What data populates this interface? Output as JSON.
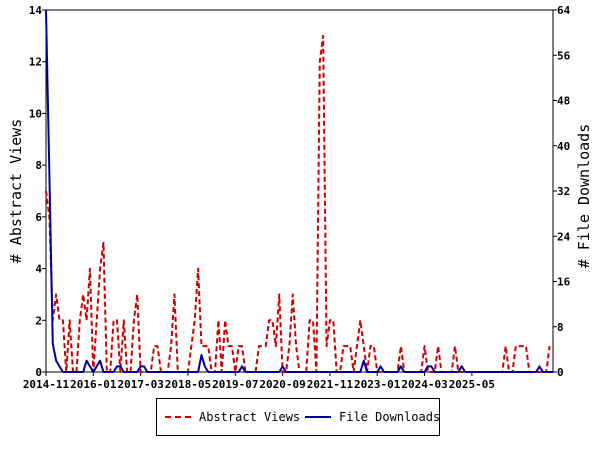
{
  "chart_data": {
    "type": "line",
    "xlabel": "",
    "ylabel": "# Abstract Views",
    "y2label": "# File Downloads",
    "ylim": [
      0,
      14
    ],
    "y2lim": [
      0,
      64
    ],
    "yticks": [
      "0",
      "2",
      "4",
      "6",
      "8",
      "10",
      "12",
      "14"
    ],
    "y2ticks": [
      "0",
      "8",
      "16",
      "24",
      "32",
      "40",
      "48",
      "56",
      "64"
    ],
    "xticks": [
      "2014-11",
      "2016-01",
      "2017-03",
      "2018-05",
      "2019-07",
      "2020-09",
      "2021-11",
      "2023-01",
      "2024-03",
      "2025-05"
    ],
    "start_month": "2014-11",
    "grid": false,
    "legend_position": "bottom",
    "series": [
      {
        "name": "Abstract Views",
        "axis": "left",
        "color": "#cc0000",
        "style": "dashed",
        "values": [
          7,
          6,
          2,
          3,
          2,
          2,
          0,
          2,
          0,
          0,
          2,
          3,
          2,
          4,
          0,
          2,
          4,
          5,
          0,
          0,
          2,
          2,
          0,
          2,
          0,
          0,
          2,
          3,
          0,
          0,
          0,
          0,
          1,
          1,
          0,
          0,
          0,
          1,
          3,
          0,
          0,
          0,
          0,
          1,
          2,
          4,
          1,
          1,
          1,
          0,
          0,
          2,
          0,
          2,
          1,
          1,
          0,
          1,
          1,
          0,
          0,
          0,
          0,
          1,
          1,
          1,
          2,
          2,
          1,
          3,
          0,
          0,
          1,
          3,
          1,
          0,
          0,
          0,
          2,
          2,
          0,
          12,
          13,
          1,
          2,
          2,
          0,
          0,
          1,
          1,
          1,
          0,
          1,
          2,
          1,
          0,
          1,
          1,
          0,
          0,
          0,
          0,
          0,
          0,
          0,
          1,
          0,
          0,
          0,
          0,
          0,
          0,
          1,
          0,
          0,
          0,
          1,
          0,
          0,
          0,
          0,
          1,
          0,
          0,
          0,
          0,
          0,
          0,
          0,
          0,
          0,
          0,
          0,
          0,
          0,
          0,
          1,
          0,
          0,
          1,
          1,
          1,
          1,
          0,
          0,
          0,
          0,
          0,
          0,
          1
        ]
      },
      {
        "name": "File Downloads",
        "axis": "right",
        "color": "#000099",
        "style": "solid",
        "values": [
          64,
          35,
          5,
          2,
          1,
          0,
          0,
          0,
          0,
          0,
          0,
          0,
          2,
          1,
          0,
          1,
          2,
          0,
          0,
          0,
          0,
          1,
          1,
          0,
          0,
          0,
          0,
          0,
          1,
          1,
          0,
          0,
          0,
          0,
          0,
          0,
          0,
          0,
          0,
          0,
          0,
          0,
          0,
          0,
          0,
          0,
          3,
          1,
          0,
          0,
          0,
          0,
          0,
          0,
          0,
          0,
          0,
          0,
          1,
          0,
          0,
          0,
          0,
          0,
          0,
          0,
          0,
          0,
          0,
          0,
          1,
          0,
          0,
          0,
          0,
          0,
          0,
          0,
          0,
          0,
          0,
          0,
          0,
          0,
          0,
          0,
          0,
          0,
          0,
          0,
          0,
          0,
          0,
          0,
          2,
          0,
          0,
          0,
          0,
          1,
          0,
          0,
          0,
          0,
          0,
          1,
          0,
          0,
          0,
          0,
          0,
          0,
          0,
          1,
          1,
          0,
          0,
          0,
          0,
          0,
          0,
          0,
          0,
          1,
          0,
          0,
          0,
          0,
          0,
          0,
          0,
          0,
          0,
          0,
          0,
          0,
          0,
          0,
          0,
          0,
          0,
          0,
          0,
          0,
          0,
          0,
          1,
          0,
          0,
          0,
          0
        ]
      }
    ]
  }
}
